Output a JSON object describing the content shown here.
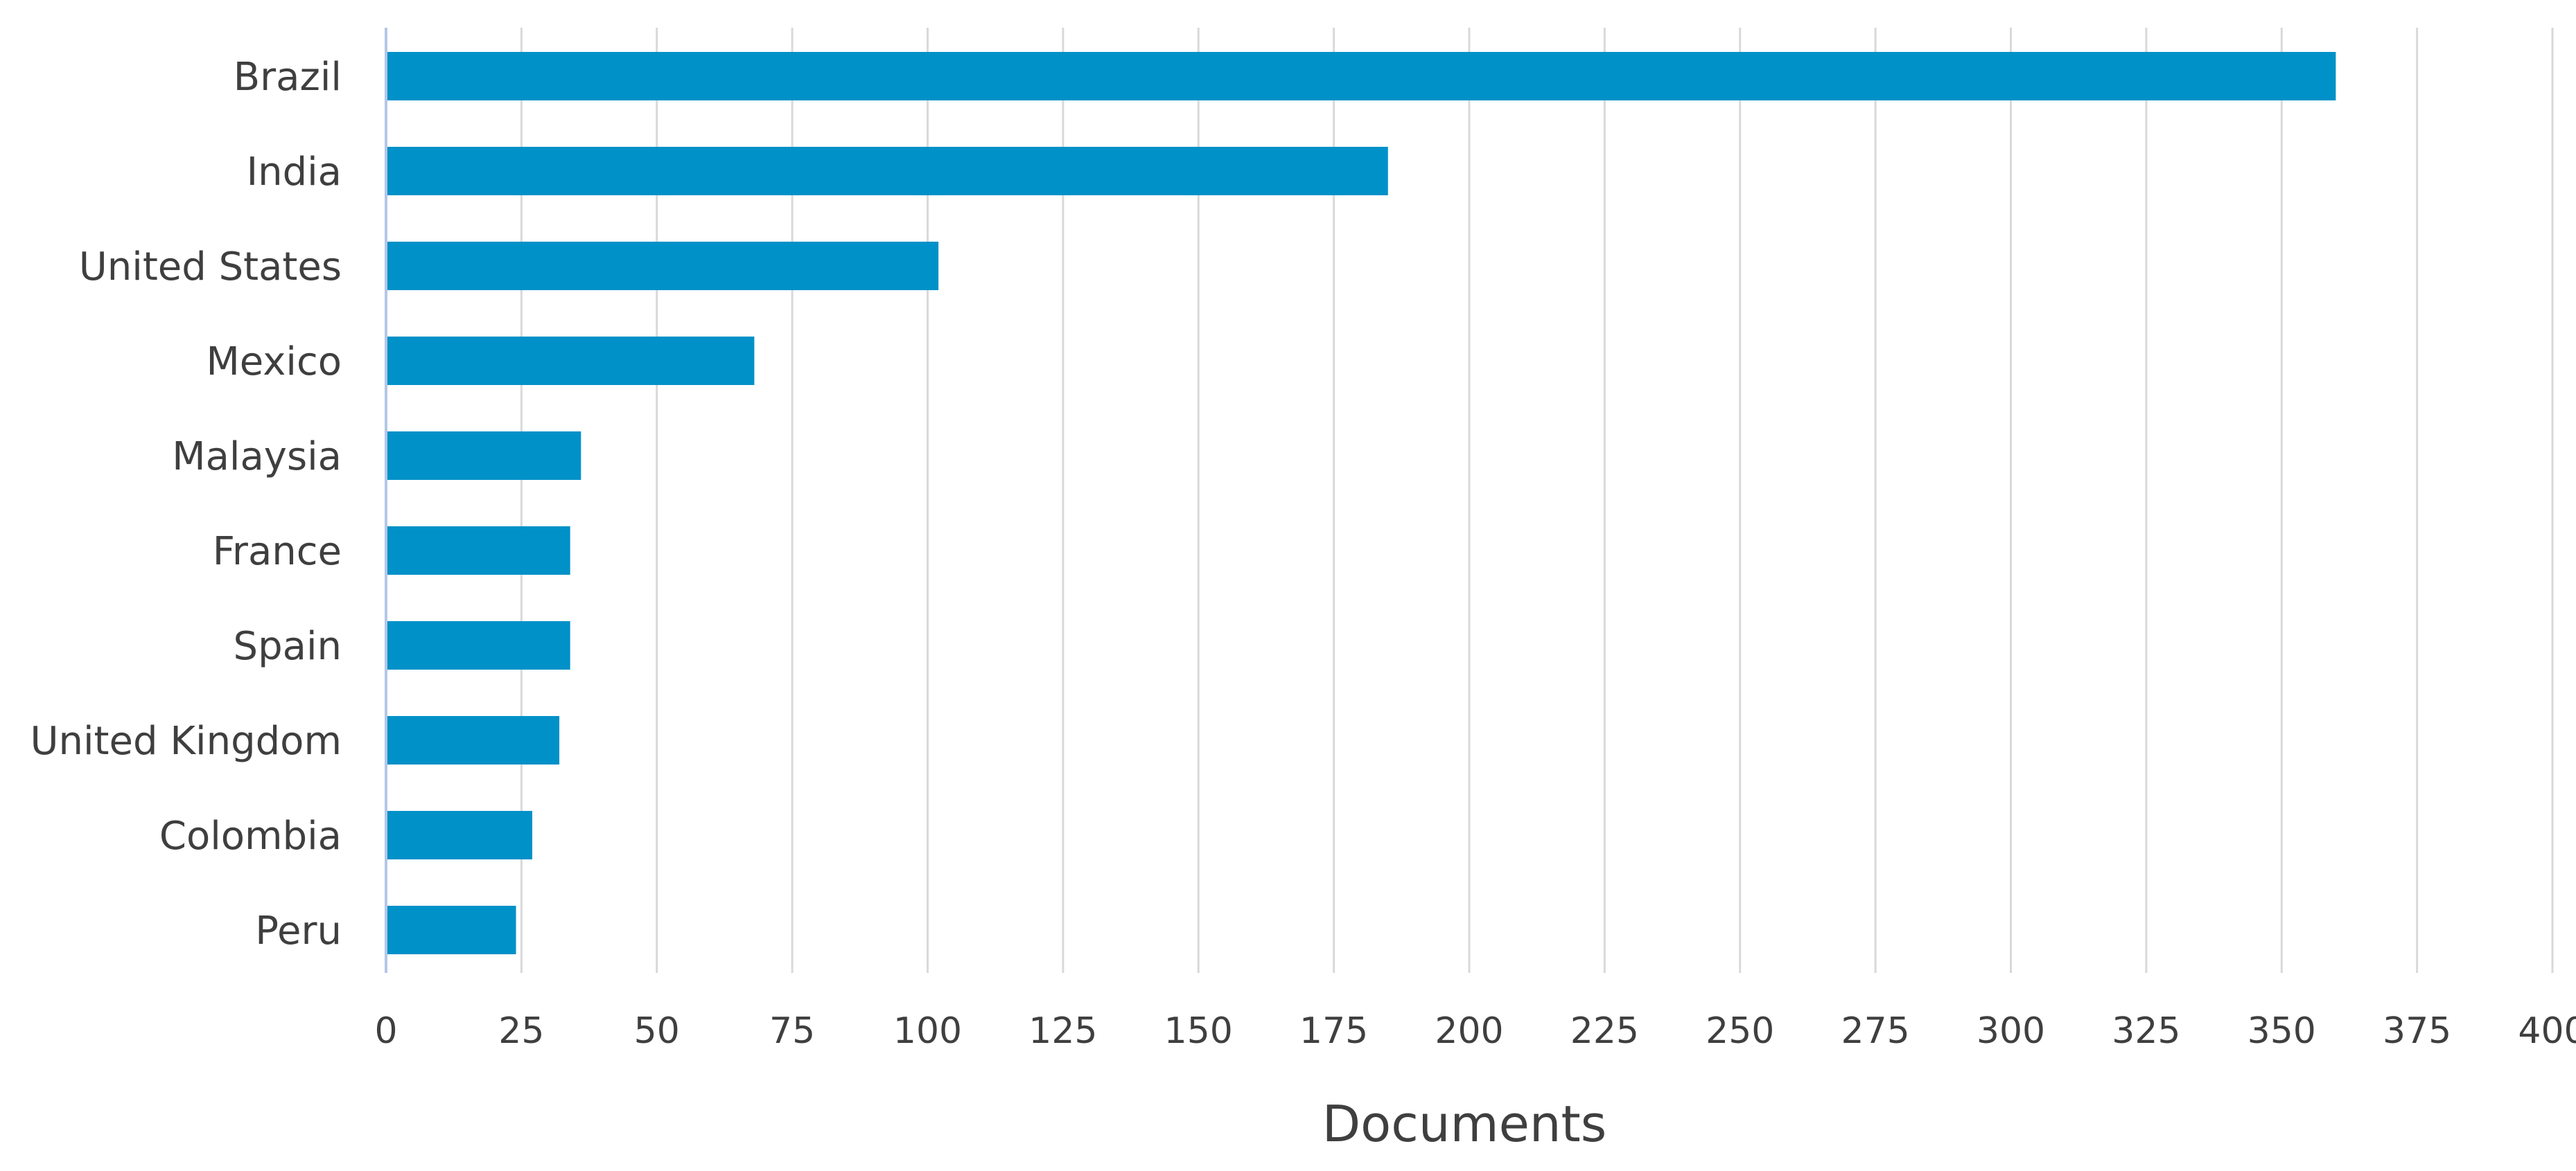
{
  "chart_data": {
    "type": "bar",
    "orientation": "horizontal",
    "categories": [
      "Brazil",
      "India",
      "United States",
      "Mexico",
      "Malaysia",
      "France",
      "Spain",
      "United Kingdom",
      "Colombia",
      "Peru"
    ],
    "values": [
      360,
      185,
      102,
      68,
      36,
      34,
      34,
      32,
      27,
      24
    ],
    "xlabel": "Documents",
    "ylabel": "",
    "title": "",
    "xlim": [
      0,
      400
    ],
    "xticks": [
      0,
      25,
      50,
      75,
      100,
      125,
      150,
      175,
      200,
      225,
      250,
      275,
      300,
      325,
      350,
      375,
      400
    ],
    "grid": "vertical",
    "legend": "none",
    "colors": {
      "bar": "#0091c8",
      "grid": "#d9d9d9",
      "axis": "#b4c7e7",
      "text": "#3f3f3f"
    }
  }
}
